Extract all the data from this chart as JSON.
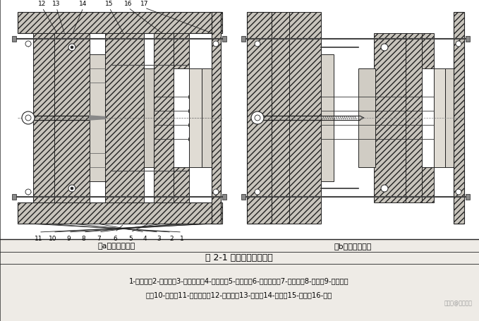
{
  "title": "图 2-1 单分型面注塑模具",
  "label_a": "（a）模具闭合时",
  "label_b": "（b）模具开启时",
  "caption_line1": "1-定位圈；2-浇口套；3-定模底板；4-定模板；5-动模板；6-动模垫板；7-复位杆；8-支架；9-推杆固定",
  "caption_line2": "板；10-推板；11-动模底板；12-拉料杆；13-推杆；14-导柱；15-凸模；16-凹模",
  "bg_color": "#f5f3ef",
  "line_color": "#222222",
  "hatch_fc": "#c8c4bc",
  "fig_width": 6.79,
  "fig_height": 4.56,
  "dpi": 100
}
